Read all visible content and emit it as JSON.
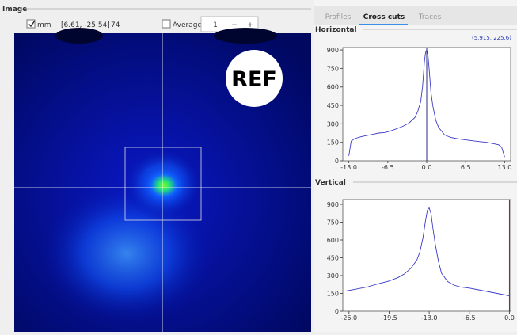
{
  "panel_title": "Image",
  "toolbar": {
    "units_label": "mm",
    "coords": "[6.61, -25.54]",
    "pixel_value": "74",
    "average_label": "Average",
    "spin_value": "1",
    "minus": "−",
    "plus": "+"
  },
  "overlay": "REF",
  "tabs": [
    "Profiles",
    "Cross cuts",
    "Traces"
  ],
  "active_tab": 1,
  "plots": [
    {
      "type": "line",
      "label": "Horizontal",
      "cursor_label": "(5.915, 225.6)",
      "color": "#3b3bc8",
      "cursor_color": "#2b2b80",
      "x": [
        -13,
        -12.6,
        -12,
        -11,
        -10,
        -9,
        -8,
        -7,
        -6.5,
        -5,
        -4,
        -3,
        -2,
        -1.5,
        -1,
        -0.7,
        -0.4,
        -0.2,
        0,
        0.2,
        0.4,
        0.7,
        1,
        1.5,
        2,
        3,
        4,
        5,
        6.5,
        8,
        9,
        10,
        11,
        12,
        12.5,
        13
      ],
      "values": [
        40,
        160,
        180,
        195,
        205,
        215,
        225,
        230,
        235,
        260,
        280,
        305,
        350,
        400,
        480,
        600,
        800,
        880,
        900,
        860,
        750,
        560,
        450,
        330,
        270,
        210,
        190,
        180,
        170,
        160,
        155,
        150,
        140,
        130,
        110,
        30
      ],
      "xlim": [
        -14,
        14
      ],
      "ylim": [
        0,
        920
      ],
      "cursor": 0,
      "xticks": [
        {
          "value": -13,
          "label": "-13.0"
        },
        {
          "value": -6.5,
          "label": "-6.5"
        },
        {
          "value": 0,
          "label": "0.0"
        },
        {
          "value": 6.5,
          "label": "6.5"
        },
        {
          "value": 13,
          "label": "13.0"
        }
      ],
      "yticks": [
        0,
        150,
        300,
        450,
        600,
        750,
        900
      ]
    },
    {
      "type": "line",
      "label": "Vertical",
      "color": "#3b3bc8",
      "cursor_color": "#802030",
      "x": [
        -26.5,
        -25,
        -23,
        -22,
        -21,
        -19.5,
        -18,
        -17,
        -16,
        -15,
        -14.5,
        -14,
        -13.6,
        -13.3,
        -13,
        -12.7,
        -12.4,
        -12,
        -11.5,
        -11,
        -10,
        -9,
        -8,
        -6.5,
        -5,
        -4,
        -3,
        -2,
        -1,
        0
      ],
      "values": [
        170,
        185,
        205,
        220,
        235,
        255,
        285,
        315,
        360,
        430,
        500,
        620,
        760,
        850,
        870,
        820,
        700,
        560,
        420,
        320,
        250,
        220,
        205,
        195,
        180,
        170,
        160,
        150,
        140,
        130
      ],
      "xlim": [
        -27,
        0.2
      ],
      "ylim": [
        0,
        940
      ],
      "cursor": 0,
      "xticks": [
        {
          "value": -26,
          "label": "-26.0"
        },
        {
          "value": -19.5,
          "label": "-19.5"
        },
        {
          "value": -13,
          "label": "-13.0"
        },
        {
          "value": -6.5,
          "label": "-6.5"
        },
        {
          "value": 0,
          "label": "0.0"
        }
      ],
      "yticks": [
        0,
        150,
        300,
        450,
        600,
        750,
        900
      ]
    }
  ]
}
